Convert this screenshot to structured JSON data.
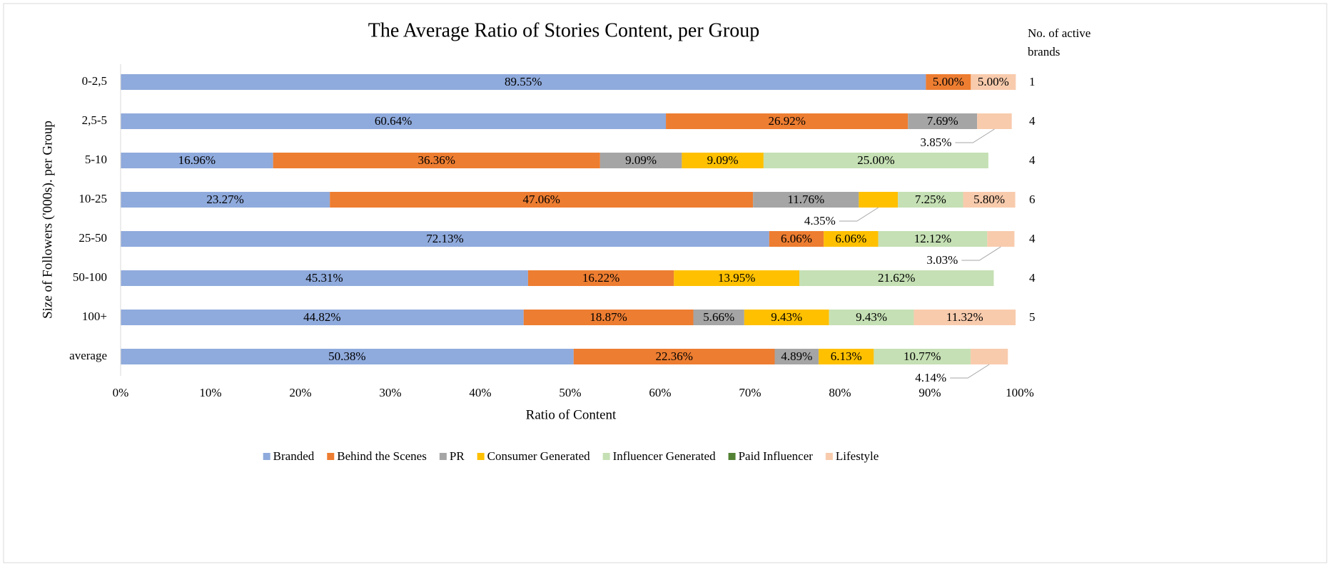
{
  "chart_data": {
    "type": "stacked-bar-horizontal",
    "title": "The Average Ratio of Stories Content, per Group",
    "x_label": "Ratio of Content",
    "y_label": "Size of Followers ('000s). per Group",
    "categories": [
      "0-2,5",
      "2,5-5",
      "5-10",
      "10-25",
      "25-50",
      "50-100",
      "100+",
      "average"
    ],
    "series": [
      {
        "name": "Branded",
        "color": "#8faadc",
        "values": [
          89.55,
          60.64,
          16.96,
          23.27,
          72.13,
          45.31,
          44.82,
          50.38
        ],
        "value_labels": [
          "89.55%",
          "60.64%",
          "16.96%",
          "23.27%",
          "72.13%",
          "45.31%",
          "44.82%",
          "50.38%"
        ]
      },
      {
        "name": "Behind the Scenes",
        "color": "#ed7d31",
        "values": [
          5.0,
          26.92,
          36.36,
          47.06,
          6.06,
          16.22,
          18.87,
          22.36
        ],
        "value_labels": [
          "5.00%",
          "26.92%",
          "36.36%",
          "47.06%",
          "6.06%",
          "16.22%",
          "18.87%",
          "22.36%"
        ]
      },
      {
        "name": "PR",
        "color": "#a5a5a5",
        "values": [
          0,
          7.69,
          9.09,
          11.76,
          0,
          0,
          5.66,
          4.89
        ],
        "value_labels": [
          null,
          "7.69%",
          "9.09%",
          "11.76%",
          null,
          null,
          "5.66%",
          "4.89%"
        ]
      },
      {
        "name": "Consumer Generated",
        "color": "#ffc000",
        "values": [
          0,
          0,
          9.09,
          4.35,
          6.06,
          13.95,
          9.43,
          6.13
        ],
        "value_labels": [
          null,
          null,
          "9.09%",
          "4.35%",
          "6.06%",
          "13.95%",
          "9.43%",
          "6.13%"
        ]
      },
      {
        "name": "Influencer Generated",
        "color": "#c5e0b4",
        "values": [
          0,
          0,
          25.0,
          7.25,
          12.12,
          21.62,
          9.43,
          10.77
        ],
        "value_labels": [
          null,
          null,
          "25.00%",
          "7.25%",
          "12.12%",
          "21.62%",
          "9.43%",
          "10.77%"
        ]
      },
      {
        "name": "Paid Influencer",
        "color": "#548235",
        "values": [
          0,
          0,
          0,
          0,
          0,
          0,
          0,
          0
        ],
        "value_labels": [
          null,
          null,
          null,
          null,
          null,
          null,
          null,
          null
        ]
      },
      {
        "name": "Lifestyle",
        "color": "#f8cbad",
        "values": [
          5.0,
          3.85,
          0,
          5.8,
          3.03,
          0,
          11.32,
          4.14
        ],
        "value_labels": [
          "5.00%",
          "3.85%",
          null,
          "5.80%",
          "3.03%",
          null,
          "11.32%",
          "4.14%"
        ]
      }
    ],
    "xlim": [
      0,
      100
    ],
    "xticks": [
      {
        "value": 0,
        "label": "0%"
      },
      {
        "value": 10,
        "label": "10%"
      },
      {
        "value": 20,
        "label": "20%"
      },
      {
        "value": 30,
        "label": "30%"
      },
      {
        "value": 40,
        "label": "40%"
      },
      {
        "value": 50,
        "label": "50%"
      },
      {
        "value": 60,
        "label": "60%"
      },
      {
        "value": 70,
        "label": "70%"
      },
      {
        "value": 80,
        "label": "80%"
      },
      {
        "value": 90,
        "label": "90%"
      },
      {
        "value": 100,
        "label": "100%"
      }
    ],
    "grid": false,
    "legend": "bottom",
    "brands_header": "No. of active brands",
    "active_brands": [
      1,
      4,
      4,
      6,
      4,
      4,
      5,
      null
    ]
  }
}
